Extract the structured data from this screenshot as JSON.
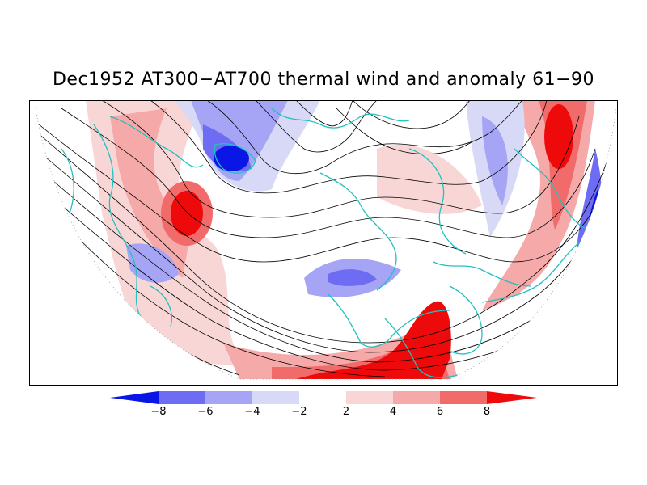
{
  "title": "Dec1952 AT300−AT700 thermal wind and anomaly 61−90",
  "colors": {
    "neg4": "#0a16e6",
    "neg3": "#6d6cf2",
    "neg2": "#a6a5f5",
    "neg1": "#d8d8f7",
    "zero": "#ffffff",
    "pos1": "#f8d6d6",
    "pos2": "#f5a9a9",
    "pos3": "#f26b6b",
    "pos4": "#ee0a0a",
    "coast": "#22c0c0"
  },
  "legend": {
    "ticks": [
      "−8",
      "−6",
      "−4",
      "−2",
      "2",
      "4",
      "6",
      "8"
    ]
  }
}
